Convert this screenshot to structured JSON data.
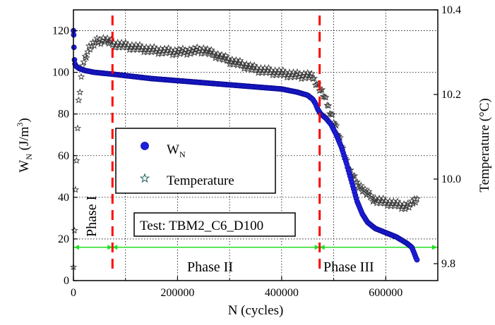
{
  "chart_data": {
    "type": "scatter",
    "xlabel": "N (cycles)",
    "ylabel_main": "W",
    "ylabel_sub": "N",
    "ylabel_unit_pre": " (J/m",
    "ylabel_unit_sup": "3",
    "ylabel_unit_post": ")",
    "y2label": "Temperature (°C)",
    "xlim": [
      0,
      700000
    ],
    "ylim": [
      0,
      130
    ],
    "y2lim": [
      9.76,
      10.4
    ],
    "x_ticks": [
      0,
      200000,
      400000,
      600000
    ],
    "x_tick_labels": [
      "0",
      "200000",
      "400000",
      "600000"
    ],
    "y_ticks": [
      0,
      20,
      40,
      60,
      80,
      100,
      120
    ],
    "y_tick_labels": [
      "0",
      "20",
      "40",
      "60",
      "80",
      "100",
      "120"
    ],
    "y2_ticks": [
      9.8,
      10.0,
      10.2,
      10.4
    ],
    "y2_tick_labels": [
      "9.8",
      "10.0",
      "10.2",
      "10.4"
    ],
    "grid": true,
    "series": [
      {
        "name_main": "W",
        "name_sub": "N",
        "axis": "left",
        "marker": "circle",
        "color": "#1f1fe0",
        "points": [
          [
            0,
            120
          ],
          [
            500,
            118
          ],
          [
            1000,
            112
          ],
          [
            2000,
            106
          ],
          [
            3000,
            104
          ],
          [
            5000,
            103
          ],
          [
            10000,
            102
          ],
          [
            20000,
            101
          ],
          [
            40000,
            100
          ],
          [
            80000,
            99
          ],
          [
            150000,
            97
          ],
          [
            200000,
            96
          ],
          [
            250000,
            95
          ],
          [
            300000,
            94
          ],
          [
            350000,
            93
          ],
          [
            400000,
            92
          ],
          [
            430000,
            90.5
          ],
          [
            450000,
            89
          ],
          [
            460000,
            87
          ],
          [
            465000,
            85
          ],
          [
            470000,
            82
          ],
          [
            475000,
            80
          ],
          [
            485000,
            78
          ],
          [
            495000,
            75
          ],
          [
            505000,
            70
          ],
          [
            515000,
            64
          ],
          [
            525000,
            56
          ],
          [
            535000,
            47
          ],
          [
            545000,
            38
          ],
          [
            555000,
            32
          ],
          [
            565000,
            28
          ],
          [
            580000,
            25
          ],
          [
            600000,
            23
          ],
          [
            620000,
            21
          ],
          [
            640000,
            18
          ],
          [
            650000,
            16
          ],
          [
            655000,
            13
          ],
          [
            658000,
            11
          ],
          [
            660000,
            10
          ]
        ]
      },
      {
        "name": "Temperature",
        "axis": "right",
        "marker": "star",
        "color": "#3a3a3a",
        "points": [
          [
            0,
            9.8
          ],
          [
            2000,
            9.88
          ],
          [
            4000,
            9.97
          ],
          [
            6000,
            10.05
          ],
          [
            8000,
            10.12
          ],
          [
            10000,
            10.18
          ],
          [
            15000,
            10.24
          ],
          [
            20000,
            10.28
          ],
          [
            30000,
            10.31
          ],
          [
            45000,
            10.325
          ],
          [
            60000,
            10.33
          ],
          [
            75000,
            10.32
          ],
          [
            100000,
            10.315
          ],
          [
            150000,
            10.305
          ],
          [
            200000,
            10.3
          ],
          [
            250000,
            10.305
          ],
          [
            300000,
            10.28
          ],
          [
            350000,
            10.26
          ],
          [
            400000,
            10.25
          ],
          [
            430000,
            10.245
          ],
          [
            450000,
            10.245
          ],
          [
            460000,
            10.24
          ],
          [
            470000,
            10.22
          ],
          [
            480000,
            10.2
          ],
          [
            490000,
            10.17
          ],
          [
            500000,
            10.14
          ],
          [
            510000,
            10.1
          ],
          [
            520000,
            10.06
          ],
          [
            530000,
            10.02
          ],
          [
            545000,
            9.99
          ],
          [
            560000,
            9.97
          ],
          [
            580000,
            9.95
          ],
          [
            600000,
            9.945
          ],
          [
            620000,
            9.94
          ],
          [
            640000,
            9.935
          ],
          [
            650000,
            9.94
          ],
          [
            655000,
            9.95
          ],
          [
            660000,
            9.955
          ]
        ]
      }
    ],
    "phase_boundaries": [
      75000,
      473000
    ],
    "phase_line_y": 16,
    "phases": {
      "phase1": "Phase I",
      "phase2": "Phase II",
      "phase3": "Phase III"
    },
    "annotation": "Test: TBM2_C6_D100",
    "legend": {
      "placement": "center",
      "temperature_label": "Temperature"
    },
    "colors": {
      "boundary": "#ff0000",
      "phase_line": "#22dd22",
      "wn": "#1f1fe0",
      "temperature": "#3a3a3a"
    }
  }
}
